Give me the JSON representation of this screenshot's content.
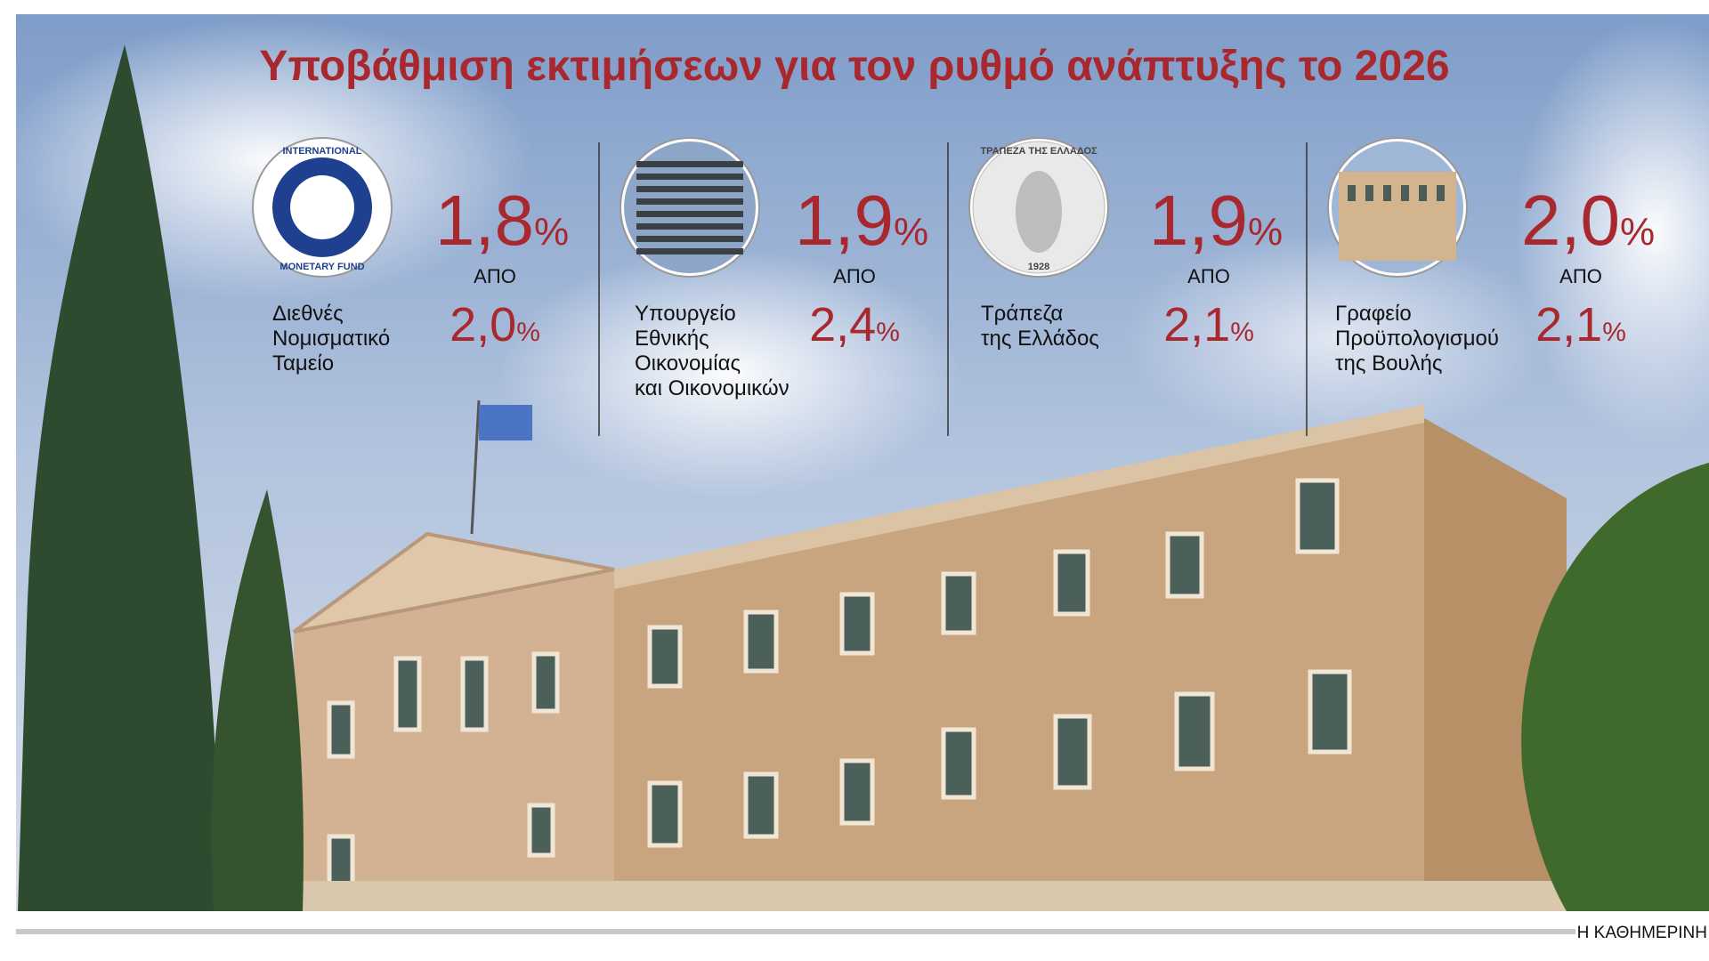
{
  "header": {
    "title": "Υποβάθμιση εκτιμήσεων για τον ρυθμό ανάπτυξης το 2026"
  },
  "items": [
    {
      "name_lines": [
        "Διεθνές",
        "Νομισματικό",
        "Ταμείο"
      ],
      "logo_text": [
        "INTERNATIONAL",
        "MONETARY FUND"
      ],
      "new": "1,8",
      "new_unit": "%",
      "from_label": "ΑΠΟ",
      "old": "2,0",
      "old_unit": "%"
    },
    {
      "name_lines": [
        "Υπουργείο",
        "Εθνικής",
        "Οικονομίας",
        "και Οικονομικών"
      ],
      "logo_text": [],
      "new": "1,9",
      "new_unit": "%",
      "from_label": "ΑΠΟ",
      "old": "2,4",
      "old_unit": "%"
    },
    {
      "name_lines": [
        "Τράπεζα",
        "της Ελλάδος"
      ],
      "logo_text": [
        "ΤΡΑΠΕΖΑ ΤΗΣ ΕΛΛΑΔΟΣ",
        "1928"
      ],
      "new": "1,9",
      "new_unit": "%",
      "from_label": "ΑΠΟ",
      "old": "2,1",
      "old_unit": "%"
    },
    {
      "name_lines": [
        "Γραφείο",
        "Προϋπολογισμού",
        "της Βουλής"
      ],
      "logo_text": [],
      "new": "2,0",
      "new_unit": "%",
      "from_label": "ΑΠΟ",
      "old": "2,1",
      "old_unit": "%"
    }
  ],
  "footer": {
    "credit": "Η ΚΑΘΗΜΕΡΙΝΗ"
  }
}
